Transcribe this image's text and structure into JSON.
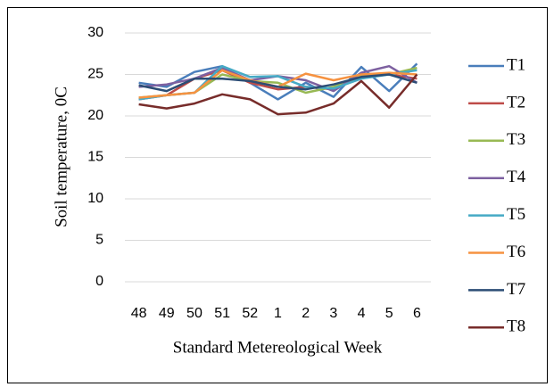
{
  "chart_data": {
    "type": "line",
    "x_label": "Standard Metereological Week",
    "y_label": "Soil temperature, 0C",
    "categories": [
      "48",
      "49",
      "50",
      "51",
      "52",
      "1",
      "2",
      "3",
      "4",
      "5",
      "6"
    ],
    "ylim": [
      0,
      30
    ],
    "yticks": [
      0,
      5,
      10,
      15,
      20,
      25,
      30
    ],
    "grid": true,
    "legend": "right",
    "series": [
      {
        "name": "T1",
        "color": "#4a7ebb",
        "values": [
          24,
          23.5,
          25.3,
          26,
          24,
          22,
          24,
          22.3,
          25.9,
          23,
          26.3
        ]
      },
      {
        "name": "T2",
        "color": "#be4b48",
        "values": [
          22,
          22.5,
          24.5,
          25.5,
          24,
          23.2,
          23.5,
          23.2,
          24.8,
          25,
          24.5
        ]
      },
      {
        "name": "T3",
        "color": "#98b954",
        "values": [
          22.2,
          22.5,
          22.8,
          25,
          24.2,
          24,
          22.8,
          23.5,
          24.8,
          25,
          25.8
        ]
      },
      {
        "name": "T4",
        "color": "#7d60a0",
        "values": [
          23.5,
          23.8,
          24.5,
          25.8,
          24.3,
          24.8,
          24.3,
          23,
          25.2,
          26,
          24
        ]
      },
      {
        "name": "T5",
        "color": "#46aac5",
        "values": [
          22,
          22.5,
          22.8,
          26,
          24.7,
          24.8,
          23.5,
          23.3,
          24.5,
          25,
          25.5
        ]
      },
      {
        "name": "T6",
        "color": "#f69240",
        "values": [
          22.2,
          22.5,
          22.8,
          25.5,
          24.3,
          23.5,
          25.1,
          24.3,
          25,
          25.2,
          25
        ]
      },
      {
        "name": "T7",
        "color": "#2c4d75",
        "values": [
          23.7,
          23,
          24.5,
          24.5,
          24.2,
          23.5,
          23.2,
          23.8,
          24.7,
          25,
          24
        ]
      },
      {
        "name": "T8",
        "color": "#772c2a",
        "values": [
          21.4,
          20.9,
          21.5,
          22.6,
          22,
          20.2,
          20.4,
          21.5,
          24.2,
          21,
          25
        ]
      }
    ]
  }
}
